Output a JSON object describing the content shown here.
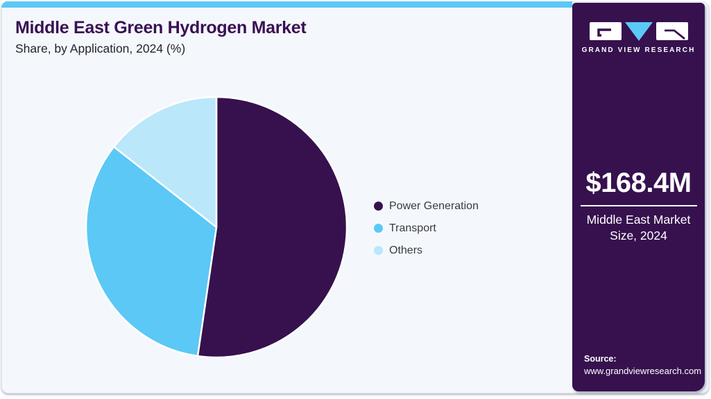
{
  "header": {
    "title": "Middle East Green Hydrogen Market",
    "subtitle": "Share, by Application, 2024 (%)"
  },
  "chart_data": {
    "type": "pie",
    "title": "Middle East Green Hydrogen Market Share, by Application, 2024 (%)",
    "categories": [
      "Power Generation",
      "Transport",
      "Others"
    ],
    "values": [
      52.3,
      33.3,
      14.4
    ],
    "unit": "%",
    "colors": [
      "#36114E",
      "#5BC8F5",
      "#BAE7FA"
    ],
    "legend_position": "right",
    "start_angle_deg": 0,
    "direction": "clockwise",
    "separator_color": "#FFFFFF",
    "annotation": {
      "value": "$168.4M",
      "label": "Middle East Market Size, 2024"
    }
  },
  "sidebar": {
    "brand_name": "GRAND VIEW RESEARCH",
    "market_size_value": "$168.4M",
    "market_size_label": "Middle East Market Size, 2024",
    "source_label": "Source:",
    "source_url": "www.grandviewresearch.com"
  },
  "theme": {
    "accent_blue": "#5BC8F5",
    "dark_purple": "#36114E",
    "light_blue": "#BAE7FA",
    "card_bg": "#F4F8FC",
    "title_color": "#3A1053"
  }
}
